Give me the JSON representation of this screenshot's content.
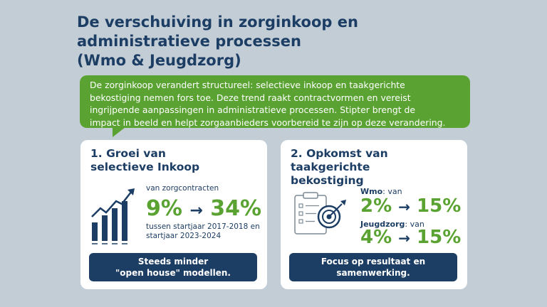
{
  "title": {
    "line1": "De verschuiving in zorginkoop en",
    "line2": "administratieve processen",
    "line3": "(Wmo & Jeugdzorg)"
  },
  "intro": {
    "line1": "De zorginkoop verandert structureel: selectieve inkoop en taakgerichte",
    "line2": "bekostiging nemen fors toe. Deze trend raakt contractvormen en vereist",
    "line3": "ingrijpende aanpassingen in administratieve processen. Stipter brengt de",
    "line4": "impact in beeld en helpt zorgaanbieders voorbereid te zijn op deze verandering."
  },
  "card1": {
    "title_line1": "1. Groei van",
    "title_line2": "selectieve Inkoop",
    "icon": "bar-chart-growth-icon",
    "caption_top": "van zorgcontracten",
    "from": "9%",
    "arrow": "→",
    "to": "34%",
    "caption_bottom_line1": "tussen startjaar 2017-2018 en",
    "caption_bottom_line2": "startjaar 2023-2024",
    "cta_line1": "Steeds minder",
    "cta_line2": "\"open house\" modellen."
  },
  "card2": {
    "title_line1": "2. Opkomst van",
    "title_line2": "taakgerichte",
    "title_line3": "bekostiging",
    "icon": "clipboard-target-icon",
    "wmo_label": "Wmo",
    "wmo_suffix": ": van",
    "wmo_from": "2%",
    "wmo_arrow": "→",
    "wmo_to": "15%",
    "jeugd_label": "Jeugdzorg",
    "jeugd_suffix": ": van",
    "jeugd_from": "4%",
    "jeugd_arrow": "→",
    "jeugd_to": "15%",
    "cta_line1": "Focus op resultaat en",
    "cta_line2": "samenwerking."
  },
  "colors": {
    "navy": "#1c3d64",
    "green": "#5aa332",
    "background": "#c3cdd6"
  }
}
